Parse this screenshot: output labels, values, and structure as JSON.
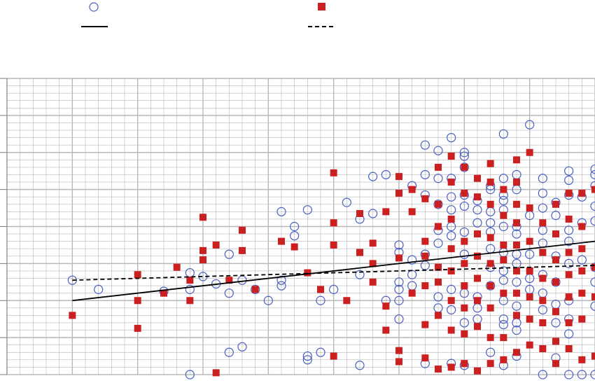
{
  "chart_data": {
    "type": "scatter",
    "title": "",
    "xlabel": "",
    "ylabel": "",
    "grid": true,
    "legend_position": "top-left",
    "xlim": [
      0,
      9
    ],
    "ylim": [
      0,
      8
    ],
    "colors": {
      "circle": "#4a5fc1",
      "square": "#cc1f1f",
      "grid": "#b8b8b8",
      "line": "#000000"
    },
    "series": [
      {
        "marker": "circle",
        "points": [
          [
            1,
            2.55
          ],
          [
            1.4,
            2.3
          ],
          [
            2.4,
            2.25
          ],
          [
            2.8,
            2.3
          ],
          [
            2.8,
            2.75
          ],
          [
            2.8,
            0
          ],
          [
            3,
            2.65
          ],
          [
            3.2,
            2.45
          ],
          [
            3.4,
            2.2
          ],
          [
            3.4,
            3.25
          ],
          [
            3.4,
            0.6
          ],
          [
            3.6,
            2.55
          ],
          [
            3.6,
            0.75
          ],
          [
            3.8,
            2.3
          ],
          [
            4,
            2.0
          ],
          [
            4.2,
            2.4
          ],
          [
            4.2,
            2.55
          ],
          [
            4.2,
            4.4
          ],
          [
            4.4,
            3.75
          ],
          [
            4.4,
            4.0
          ],
          [
            4.6,
            4.45
          ],
          [
            4.6,
            0.5
          ],
          [
            4.6,
            0.4
          ],
          [
            4.8,
            2.0
          ],
          [
            4.8,
            0.6
          ],
          [
            5,
            2.3
          ],
          [
            5.2,
            4.65
          ],
          [
            5.4,
            4.2
          ],
          [
            5.4,
            2.7
          ],
          [
            5.4,
            0.25
          ],
          [
            5.6,
            4.35
          ],
          [
            5.6,
            5.35
          ],
          [
            5.8,
            5.4
          ],
          [
            5.8,
            2.0
          ],
          [
            6,
            3.5
          ],
          [
            6,
            3.3
          ],
          [
            6,
            2.5
          ],
          [
            6,
            2.3
          ],
          [
            6,
            2.0
          ],
          [
            6,
            1.5
          ],
          [
            6.2,
            5.1
          ],
          [
            6.2,
            3.1
          ],
          [
            6.2,
            2.7
          ],
          [
            6.2,
            2.4
          ],
          [
            6.4,
            6.2
          ],
          [
            6.4,
            5.4
          ],
          [
            6.4,
            4.85
          ],
          [
            6.4,
            3.25
          ],
          [
            6.4,
            2.95
          ],
          [
            6.4,
            0.3
          ],
          [
            6.6,
            6.05
          ],
          [
            6.6,
            5.3
          ],
          [
            6.6,
            4.6
          ],
          [
            6.6,
            3.9
          ],
          [
            6.6,
            3.55
          ],
          [
            6.6,
            1.8
          ],
          [
            6.6,
            2.1
          ],
          [
            6.8,
            6.4
          ],
          [
            6.8,
            5.3
          ],
          [
            6.8,
            4.8
          ],
          [
            6.8,
            4.45
          ],
          [
            6.8,
            4.0
          ],
          [
            6.8,
            3.75
          ],
          [
            6.8,
            2.3
          ],
          [
            6.8,
            1.75
          ],
          [
            6.8,
            0.3
          ],
          [
            7,
            6.0
          ],
          [
            7,
            5.9
          ],
          [
            7,
            5.6
          ],
          [
            7,
            4.85
          ],
          [
            7,
            4.55
          ],
          [
            7,
            3.85
          ],
          [
            7,
            3.25
          ],
          [
            7,
            2.2
          ],
          [
            7,
            1.4
          ],
          [
            7,
            0.25
          ],
          [
            7.2,
            4.7
          ],
          [
            7.2,
            4.45
          ],
          [
            7.2,
            4.1
          ],
          [
            7.2,
            2.1
          ],
          [
            7.2,
            1.8
          ],
          [
            7.2,
            1.5
          ],
          [
            7.4,
            5.1
          ],
          [
            7.4,
            5.0
          ],
          [
            7.4,
            4.4
          ],
          [
            7.4,
            4.1
          ],
          [
            7.4,
            3.85
          ],
          [
            7.4,
            3.4
          ],
          [
            7.4,
            2.9
          ],
          [
            7.4,
            2.4
          ],
          [
            7.4,
            0.6
          ],
          [
            7.6,
            6.5
          ],
          [
            7.6,
            5.3
          ],
          [
            7.6,
            4.85
          ],
          [
            7.6,
            4.7
          ],
          [
            7.6,
            4.45
          ],
          [
            7.6,
            4.0
          ],
          [
            7.6,
            3.3
          ],
          [
            7.6,
            2.8
          ],
          [
            7.6,
            2.55
          ],
          [
            7.6,
            2.0
          ],
          [
            7.6,
            1.5
          ],
          [
            7.6,
            1.35
          ],
          [
            7.6,
            0.25
          ],
          [
            7.8,
            5.4
          ],
          [
            7.8,
            5.0
          ],
          [
            7.8,
            4.0
          ],
          [
            7.8,
            3.8
          ],
          [
            7.8,
            3.25
          ],
          [
            7.8,
            3.0
          ],
          [
            7.8,
            2.5
          ],
          [
            7.8,
            1.85
          ],
          [
            7.8,
            1.4
          ],
          [
            7.8,
            1.2
          ],
          [
            7.8,
            0.5
          ],
          [
            8,
            6.75
          ],
          [
            8,
            4.3
          ],
          [
            8,
            3.25
          ],
          [
            8,
            2.6
          ],
          [
            8,
            2.3
          ],
          [
            8.2,
            5.3
          ],
          [
            8.2,
            4.9
          ],
          [
            8.2,
            4.5
          ],
          [
            8.2,
            3.9
          ],
          [
            8.2,
            3.55
          ],
          [
            8.2,
            2.7
          ],
          [
            8.2,
            2.2
          ],
          [
            8.2,
            1.75
          ],
          [
            8.2,
            0
          ],
          [
            8.4,
            4.65
          ],
          [
            8.4,
            4.3
          ],
          [
            8.4,
            3.2
          ],
          [
            8.4,
            2.5
          ],
          [
            8.4,
            1.9
          ],
          [
            8.4,
            1.4
          ],
          [
            8.4,
            0.45
          ],
          [
            8.6,
            5.5
          ],
          [
            8.6,
            5.25
          ],
          [
            8.6,
            4.85
          ],
          [
            8.6,
            3.9
          ],
          [
            8.6,
            3.6
          ],
          [
            8.6,
            3.0
          ],
          [
            8.6,
            2.0
          ],
          [
            8.6,
            1.5
          ],
          [
            8.6,
            1.1
          ],
          [
            8.6,
            0
          ],
          [
            8.8,
            4.8
          ],
          [
            8.8,
            4.1
          ],
          [
            8.8,
            3.1
          ],
          [
            8.8,
            0
          ],
          [
            9,
            5.55
          ],
          [
            9,
            5.4
          ],
          [
            9,
            5.1
          ],
          [
            9,
            4.55
          ],
          [
            9,
            4.15
          ],
          [
            9,
            2.9
          ],
          [
            9,
            2.5
          ],
          [
            9,
            1.85
          ],
          [
            9,
            0
          ]
        ]
      },
      {
        "marker": "square",
        "points": [
          [
            1,
            1.6
          ],
          [
            2,
            2.7
          ],
          [
            2,
            2.0
          ],
          [
            2,
            1.25
          ],
          [
            2.4,
            2.2
          ],
          [
            2.6,
            2.9
          ],
          [
            2.8,
            2.55
          ],
          [
            2.8,
            2.0
          ],
          [
            3,
            3.1
          ],
          [
            3,
            3.35
          ],
          [
            3,
            4.25
          ],
          [
            3.2,
            3.5
          ],
          [
            3.2,
            0.05
          ],
          [
            3.4,
            2.55
          ],
          [
            3.6,
            3.35
          ],
          [
            3.6,
            3.9
          ],
          [
            3.8,
            2.3
          ],
          [
            4.2,
            3.6
          ],
          [
            4.4,
            3.45
          ],
          [
            4.6,
            2.75
          ],
          [
            4.8,
            2.3
          ],
          [
            5,
            3.5
          ],
          [
            5,
            4.1
          ],
          [
            5,
            0.5
          ],
          [
            5,
            5.45
          ],
          [
            5.2,
            2.0
          ],
          [
            5.4,
            4.35
          ],
          [
            5.4,
            3.3
          ],
          [
            5.6,
            3.55
          ],
          [
            5.6,
            3.0
          ],
          [
            5.6,
            2.5
          ],
          [
            5.8,
            4.4
          ],
          [
            5.8,
            1.85
          ],
          [
            5.8,
            1.2
          ],
          [
            6,
            5.35
          ],
          [
            6,
            3.15
          ],
          [
            6,
            4.9
          ],
          [
            6,
            0.65
          ],
          [
            6,
            0.35
          ],
          [
            6.2,
            5.0
          ],
          [
            6.2,
            4.4
          ],
          [
            6.2,
            2.2
          ],
          [
            6.4,
            4.75
          ],
          [
            6.4,
            3.6
          ],
          [
            6.4,
            3.2
          ],
          [
            6.4,
            2.4
          ],
          [
            6.4,
            1.35
          ],
          [
            6.4,
            0.45
          ],
          [
            6.6,
            5.6
          ],
          [
            6.6,
            4.6
          ],
          [
            6.6,
            4.0
          ],
          [
            6.6,
            2.9
          ],
          [
            6.6,
            2.5
          ],
          [
            6.6,
            1.6
          ],
          [
            6.6,
            0.15
          ],
          [
            6.8,
            5.9
          ],
          [
            6.8,
            5.2
          ],
          [
            6.8,
            4.2
          ],
          [
            6.8,
            3.4
          ],
          [
            6.8,
            2.8
          ],
          [
            6.8,
            2.0
          ],
          [
            6.8,
            1.2
          ],
          [
            6.8,
            0.2
          ],
          [
            7,
            5.6
          ],
          [
            7,
            4.9
          ],
          [
            7,
            3.6
          ],
          [
            7,
            3.0
          ],
          [
            7,
            2.4
          ],
          [
            7,
            1.8
          ],
          [
            7,
            1.1
          ],
          [
            7,
            0.3
          ],
          [
            7.2,
            5.3
          ],
          [
            7.2,
            4.8
          ],
          [
            7.2,
            3.8
          ],
          [
            7.2,
            3.2
          ],
          [
            7.2,
            2.6
          ],
          [
            7.2,
            2.0
          ],
          [
            7.2,
            1.3
          ],
          [
            7.2,
            0.1
          ],
          [
            7.4,
            5.7
          ],
          [
            7.4,
            5.2
          ],
          [
            7.4,
            4.6
          ],
          [
            7.4,
            3.7
          ],
          [
            7.4,
            3.0
          ],
          [
            7.4,
            2.4
          ],
          [
            7.4,
            1.8
          ],
          [
            7.4,
            1.0
          ],
          [
            7.4,
            0.3
          ],
          [
            7.6,
            5.0
          ],
          [
            7.6,
            4.3
          ],
          [
            7.6,
            3.5
          ],
          [
            7.6,
            3.1
          ],
          [
            7.6,
            2.2
          ],
          [
            7.6,
            1.0
          ],
          [
            7.6,
            0.4
          ],
          [
            7.8,
            5.8
          ],
          [
            7.8,
            5.2
          ],
          [
            7.8,
            4.6
          ],
          [
            7.8,
            4.1
          ],
          [
            7.8,
            3.5
          ],
          [
            7.8,
            2.8
          ],
          [
            7.8,
            2.2
          ],
          [
            7.8,
            1.6
          ],
          [
            7.8,
            0.6
          ],
          [
            8,
            6.0
          ],
          [
            8,
            4.5
          ],
          [
            8,
            3.6
          ],
          [
            8,
            2.8
          ],
          [
            8,
            2.1
          ],
          [
            8,
            1.5
          ],
          [
            8,
            0.8
          ],
          [
            8.2,
            4.1
          ],
          [
            8.2,
            3.3
          ],
          [
            8.2,
            2.6
          ],
          [
            8.2,
            2.0
          ],
          [
            8.2,
            1.4
          ],
          [
            8.2,
            0.7
          ],
          [
            8.4,
            4.6
          ],
          [
            8.4,
            3.8
          ],
          [
            8.4,
            3.1
          ],
          [
            8.4,
            2.5
          ],
          [
            8.4,
            1.7
          ],
          [
            8.4,
            0.9
          ],
          [
            8.4,
            0.3
          ],
          [
            8.6,
            4.9
          ],
          [
            8.6,
            4.2
          ],
          [
            8.6,
            3.3
          ],
          [
            8.6,
            2.7
          ],
          [
            8.6,
            2.1
          ],
          [
            8.6,
            1.4
          ],
          [
            8.6,
            0.7
          ],
          [
            8.8,
            4.9
          ],
          [
            8.8,
            4.0
          ],
          [
            8.8,
            3.4
          ],
          [
            8.8,
            2.8
          ],
          [
            8.8,
            2.2
          ],
          [
            8.8,
            1.5
          ],
          [
            8.8,
            0.4
          ],
          [
            9,
            5.0
          ],
          [
            9,
            2.9
          ],
          [
            9,
            2.1
          ],
          [
            9,
            0.5
          ]
        ]
      }
    ],
    "trendlines": [
      {
        "style": "solid",
        "from": [
          1,
          2.0
        ],
        "to": [
          9,
          3.6
        ]
      },
      {
        "style": "dashed",
        "from": [
          1,
          2.55
        ],
        "to": [
          9,
          2.95
        ]
      }
    ]
  }
}
